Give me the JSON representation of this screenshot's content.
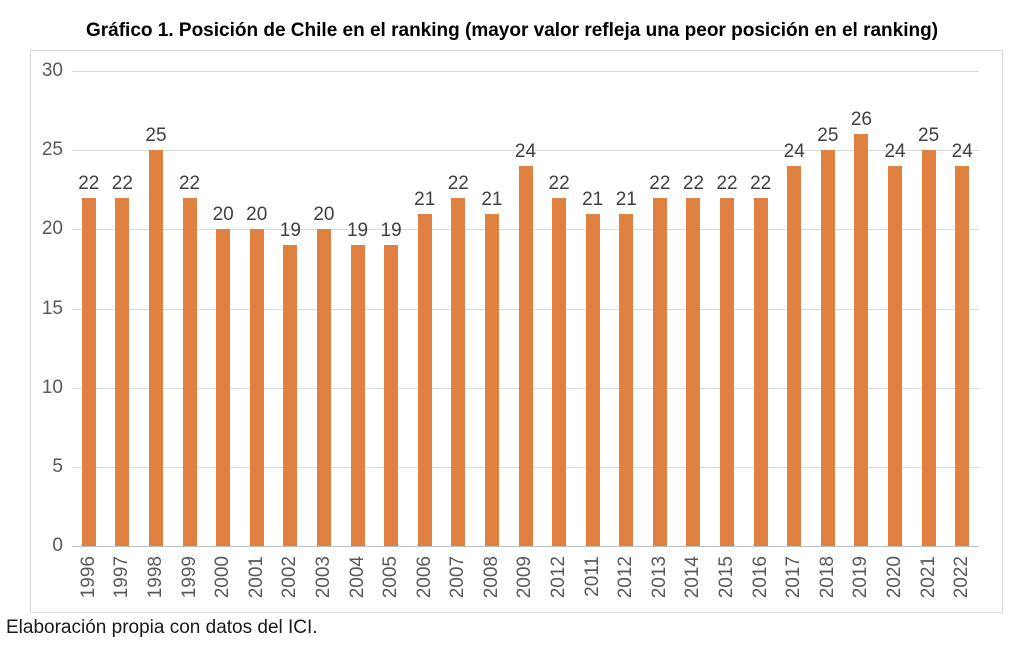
{
  "title": "Gráfico 1. Posición de Chile en el ranking (mayor valor refleja una peor posición en el ranking)",
  "source_note": "Elaboración propia con datos del ICI.",
  "chart_data": {
    "type": "bar",
    "title": "Gráfico 1. Posición de Chile en el ranking (mayor valor refleja una peor posición en el ranking)",
    "categories": [
      "1996",
      "1997",
      "1998",
      "1999",
      "2000",
      "2001",
      "2002",
      "2003",
      "2004",
      "2005",
      "2006",
      "2007",
      "2008",
      "2009",
      "2012",
      "2011",
      "2012",
      "2013",
      "2014",
      "2015",
      "2016",
      "2017",
      "2018",
      "2019",
      "2020",
      "2021",
      "2022"
    ],
    "values": [
      22,
      22,
      25,
      22,
      20,
      20,
      19,
      20,
      19,
      19,
      21,
      22,
      21,
      24,
      22,
      21,
      21,
      22,
      22,
      22,
      22,
      24,
      25,
      26,
      24,
      25,
      24
    ],
    "xlabel": "",
    "ylabel": "",
    "ylim": [
      0,
      30
    ],
    "yticks": [
      0,
      5,
      10,
      15,
      20,
      25,
      30
    ],
    "grid": true,
    "legend": false,
    "data_labels": true,
    "colors": {
      "bar": "#E08142",
      "gridline": "#D9D9D9",
      "axis_line": "#BFBFBF",
      "frame_border": "#D9D9D9",
      "tick_label": "#595959",
      "data_label": "#404040",
      "title": "#000000"
    }
  }
}
